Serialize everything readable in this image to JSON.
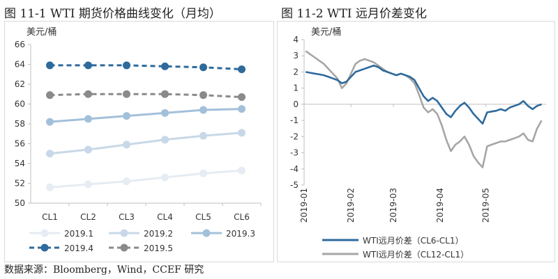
{
  "left_title": "图 11-1 WTI 期货价格曲线变化（月均）",
  "right_title": "图 11-2 WTI 远月价差变化",
  "source": "数据来源：Bloomberg，Wind，CCEF 研究",
  "chart_data": [
    {
      "type": "line",
      "title": "图 11-1 WTI 期货价格曲线变化（月均）",
      "ylabel": "美元/桶",
      "xlabel": "",
      "categories": [
        "CL1",
        "CL2",
        "CL3",
        "CL4",
        "CL5",
        "CL6"
      ],
      "ylim": [
        50,
        66
      ],
      "yticks": [
        50,
        52,
        54,
        56,
        58,
        60,
        62,
        64,
        66
      ],
      "grid": false,
      "legend": "bottom",
      "series": [
        {
          "name": "2019.1",
          "color": "#e6ecf3",
          "dashed": false,
          "values": [
            51.6,
            51.9,
            52.2,
            52.6,
            53.0,
            53.3
          ]
        },
        {
          "name": "2019.2",
          "color": "#c8d8e8",
          "dashed": false,
          "values": [
            55.0,
            55.4,
            55.9,
            56.4,
            56.8,
            57.1
          ]
        },
        {
          "name": "2019.3",
          "color": "#a3c0da",
          "dashed": false,
          "values": [
            58.2,
            58.5,
            58.8,
            59.1,
            59.4,
            59.5
          ]
        },
        {
          "name": "2019.4",
          "color": "#2e6a9c",
          "dashed": true,
          "values": [
            63.9,
            63.9,
            63.9,
            63.8,
            63.7,
            63.5
          ]
        },
        {
          "name": "2019.5",
          "color": "#8a8a8a",
          "dashed": true,
          "values": [
            60.9,
            61.0,
            61.0,
            61.0,
            60.9,
            60.7
          ]
        }
      ]
    },
    {
      "type": "line",
      "title": "图 11-2 WTI 远月价差变化",
      "ylabel": "美元/桶",
      "xlabel": "",
      "x_ticks": [
        "2019-01",
        "2019-02",
        "2019-03",
        "2019-04",
        "2019-05"
      ],
      "x_range": [
        "2019-01-01",
        "2019-06-10"
      ],
      "ylim": [
        -5,
        4
      ],
      "yticks": [
        -5,
        -4,
        -3,
        -2,
        -1,
        0,
        1,
        2,
        3,
        4
      ],
      "grid": false,
      "legend": "bottom",
      "series": [
        {
          "name": "WTI远月价差（CL6-CL1）",
          "color": "#2e6a9c",
          "x": [
            "2019-01-02",
            "2019-01-05",
            "2019-01-08",
            "2019-01-11",
            "2019-01-14",
            "2019-01-17",
            "2019-01-20",
            "2019-01-23",
            "2019-01-26",
            "2019-01-29",
            "2019-02-01",
            "2019-02-04",
            "2019-02-07",
            "2019-02-10",
            "2019-02-13",
            "2019-02-16",
            "2019-02-19",
            "2019-02-22",
            "2019-02-25",
            "2019-02-28",
            "2019-03-03",
            "2019-03-06",
            "2019-03-09",
            "2019-03-12",
            "2019-03-15",
            "2019-03-18",
            "2019-03-21",
            "2019-03-24",
            "2019-03-27",
            "2019-03-30",
            "2019-04-02",
            "2019-04-05",
            "2019-04-08",
            "2019-04-11",
            "2019-04-14",
            "2019-04-17",
            "2019-04-20",
            "2019-04-23",
            "2019-04-26",
            "2019-04-29",
            "2019-05-02",
            "2019-05-05",
            "2019-05-08",
            "2019-05-11",
            "2019-05-14",
            "2019-05-17",
            "2019-05-20",
            "2019-05-23",
            "2019-05-26",
            "2019-05-29",
            "2019-06-01",
            "2019-06-04",
            "2019-06-07"
          ],
          "values": [
            2.0,
            1.95,
            1.9,
            1.85,
            1.8,
            1.7,
            1.6,
            1.5,
            1.3,
            1.4,
            1.7,
            2.0,
            2.1,
            2.2,
            2.3,
            2.4,
            2.3,
            2.1,
            2.0,
            1.9,
            1.8,
            1.9,
            1.8,
            1.7,
            1.5,
            1.0,
            0.5,
            0.2,
            0.4,
            0.2,
            -0.2,
            -0.6,
            -0.8,
            -0.4,
            -0.1,
            0.1,
            -0.2,
            -0.6,
            -0.9,
            -1.2,
            -0.5,
            -0.45,
            -0.4,
            -0.3,
            -0.4,
            -0.2,
            -0.1,
            0.0,
            0.2,
            -0.1,
            -0.3,
            -0.1,
            0.0
          ]
        },
        {
          "name": "WTI远月价差（CL12-CL1）",
          "color": "#a6a6a6",
          "x": [
            "2019-01-02",
            "2019-01-05",
            "2019-01-08",
            "2019-01-11",
            "2019-01-14",
            "2019-01-17",
            "2019-01-20",
            "2019-01-23",
            "2019-01-26",
            "2019-01-29",
            "2019-02-01",
            "2019-02-04",
            "2019-02-07",
            "2019-02-10",
            "2019-02-13",
            "2019-02-16",
            "2019-02-19",
            "2019-02-22",
            "2019-02-25",
            "2019-02-28",
            "2019-03-03",
            "2019-03-06",
            "2019-03-09",
            "2019-03-12",
            "2019-03-15",
            "2019-03-18",
            "2019-03-21",
            "2019-03-24",
            "2019-03-27",
            "2019-03-30",
            "2019-04-02",
            "2019-04-05",
            "2019-04-08",
            "2019-04-11",
            "2019-04-14",
            "2019-04-17",
            "2019-04-20",
            "2019-04-23",
            "2019-04-26",
            "2019-04-29",
            "2019-05-02",
            "2019-05-05",
            "2019-05-08",
            "2019-05-11",
            "2019-05-14",
            "2019-05-17",
            "2019-05-20",
            "2019-05-23",
            "2019-05-26",
            "2019-05-29",
            "2019-06-01",
            "2019-06-04",
            "2019-06-07"
          ],
          "values": [
            3.3,
            3.1,
            2.9,
            2.7,
            2.5,
            2.2,
            1.9,
            1.6,
            1.0,
            1.3,
            1.9,
            2.5,
            2.7,
            2.8,
            2.7,
            2.6,
            2.4,
            2.2,
            2.0,
            1.9,
            1.8,
            1.9,
            1.8,
            1.6,
            1.3,
            0.6,
            -0.2,
            -0.5,
            -0.3,
            -0.6,
            -1.3,
            -2.2,
            -2.9,
            -2.5,
            -2.3,
            -2.0,
            -2.5,
            -3.2,
            -3.6,
            -3.9,
            -2.6,
            -2.5,
            -2.4,
            -2.3,
            -2.3,
            -2.2,
            -2.1,
            -2.0,
            -1.8,
            -2.2,
            -2.3,
            -1.5,
            -1.0
          ]
        }
      ]
    }
  ]
}
